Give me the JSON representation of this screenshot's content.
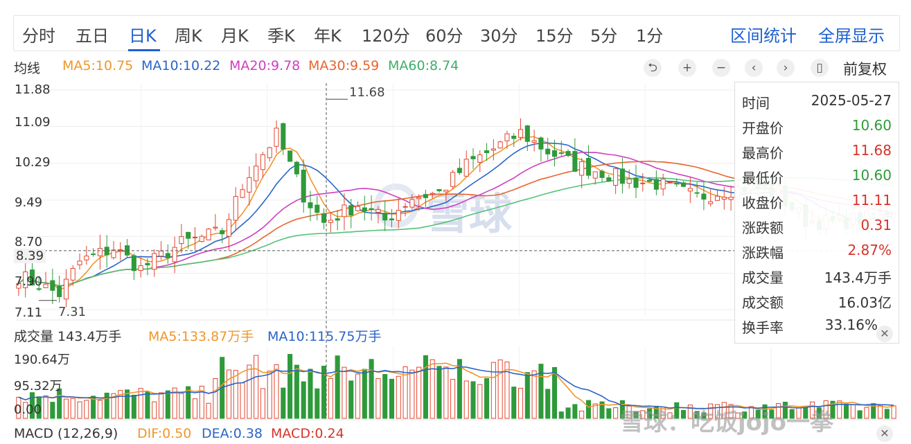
{
  "period_tabs": [
    "分时",
    "五日",
    "日K",
    "周K",
    "月K",
    "季K",
    "年K",
    "120分",
    "60分",
    "30分",
    "15分",
    "5分",
    "1分"
  ],
  "active_tab": "日K",
  "right_links": {
    "interval_stats": "区间统计",
    "fullscreen": "全屏显示"
  },
  "ma_legend": {
    "title": "均线",
    "ma5": "MA5:10.75",
    "ma10": "MA10:10.22",
    "ma20": "MA20:9.78",
    "ma30": "MA30:9.59",
    "ma60": "MA60:8.74"
  },
  "controls": {
    "reset_icon": "undo-icon",
    "zoom_in_icon": "plus-icon",
    "zoom_out_icon": "minus-icon",
    "left_icon": "chevron-left-icon",
    "right_icon": "chevron-right-icon",
    "candle_icon": "candlestick-icon",
    "adjust_label": "前复权"
  },
  "price_axis": {
    "ticks": [
      "11.88",
      "11.09",
      "10.29",
      "9.49",
      "8.70",
      "7.90",
      "7.11"
    ],
    "crosshair_price": "8.39",
    "high_marker": "11.68",
    "low_marker": "7.31"
  },
  "info_panel": {
    "rows": [
      {
        "key": "时间",
        "value": "2025-05-27"
      },
      {
        "key": "开盘价",
        "value": "10.60"
      },
      {
        "key": "最高价",
        "value": "11.68"
      },
      {
        "key": "最低价",
        "value": "10.60"
      },
      {
        "key": "收盘价",
        "value": "11.11"
      },
      {
        "key": "涨跌额",
        "value": "0.31"
      },
      {
        "key": "涨跌幅",
        "value": "2.87%"
      },
      {
        "key": "成交量",
        "value": "143.4万手"
      },
      {
        "key": "成交额",
        "value": "16.03亿"
      },
      {
        "key": "换手率",
        "value": "33.16%"
      }
    ]
  },
  "volume_legend": {
    "title": "成交量 143.4万手",
    "ma5": "MA5:133.87万手",
    "ma10": "MA10:115.75万手"
  },
  "volume_axis": {
    "ticks": [
      "190.64万",
      "95.32万",
      "0.00"
    ]
  },
  "macd_legend": {
    "title": "MACD (12,26,9)",
    "dif": "DIF:0.50",
    "dea": "DEA:0.38",
    "macd": "MACD:0.24"
  },
  "watermark": {
    "text": "雪球",
    "footer": "雪球：吃饭jojo一拳"
  },
  "colors": {
    "up": "#e0452f",
    "down": "#2e9a3a",
    "accent": "#1d5fd0",
    "ma5": "#f0962a",
    "ma10": "#2a64c8",
    "ma20": "#cf3fbf",
    "ma30": "#e8642e",
    "ma60": "#55c07a",
    "up_text": "#d6322a",
    "down_text": "#2e9a3a"
  },
  "chart_data": {
    "type": "candlestick",
    "ylim": [
      7.11,
      11.88
    ],
    "n_candles": 130,
    "anchors": [
      [
        0,
        7.85
      ],
      [
        6,
        7.45
      ],
      [
        9,
        8.15
      ],
      [
        14,
        8.45
      ],
      [
        18,
        8.0
      ],
      [
        24,
        8.55
      ],
      [
        30,
        8.8
      ],
      [
        34,
        10.1
      ],
      [
        38,
        10.9
      ],
      [
        42,
        9.6
      ],
      [
        45,
        9.0
      ],
      [
        50,
        9.4
      ],
      [
        54,
        9.05
      ],
      [
        58,
        9.55
      ],
      [
        62,
        9.65
      ],
      [
        66,
        10.25
      ],
      [
        70,
        10.6
      ],
      [
        74,
        10.95
      ],
      [
        78,
        10.55
      ],
      [
        82,
        10.25
      ],
      [
        86,
        10.1
      ],
      [
        90,
        9.9
      ],
      [
        94,
        9.85
      ],
      [
        100,
        9.55
      ],
      [
        104,
        9.7
      ],
      [
        108,
        9.8
      ],
      [
        112,
        9.6
      ],
      [
        116,
        9.05
      ],
      [
        120,
        9.0
      ],
      [
        125,
        9.1
      ],
      [
        129,
        9.3
      ]
    ],
    "volume_ylim": [
      0,
      190.64
    ],
    "ma_last": {
      "ma5": 10.75,
      "ma10": 10.22,
      "ma20": 9.78,
      "ma30": 9.59,
      "ma60": 8.74
    }
  }
}
